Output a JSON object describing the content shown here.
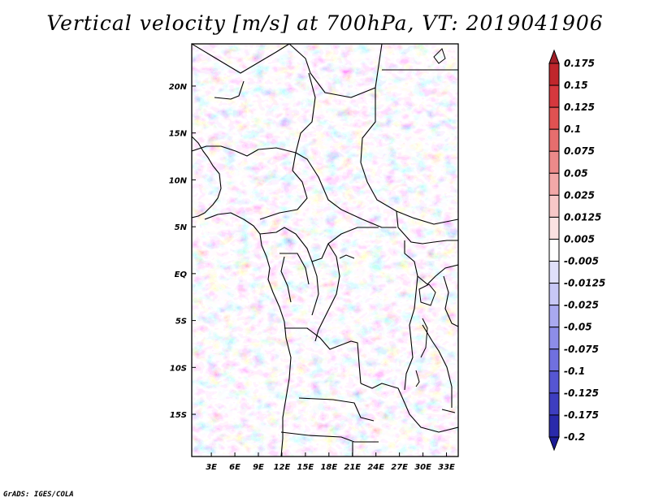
{
  "title": "Vertical velocity [m/s] at 700hPa, VT: 2019041906",
  "footer": "GrADS: IGES/COLA",
  "map": {
    "lat_range": [
      -19.5,
      24.5
    ],
    "lon_range": [
      0.5,
      34.5
    ],
    "lat_ticks": [
      {
        "value": 20,
        "label": "20N"
      },
      {
        "value": 15,
        "label": "15N"
      },
      {
        "value": 10,
        "label": "10N"
      },
      {
        "value": 5,
        "label": "5N"
      },
      {
        "value": 0,
        "label": "EQ"
      },
      {
        "value": -5,
        "label": "5S"
      },
      {
        "value": -10,
        "label": "10S"
      },
      {
        "value": -15,
        "label": "15S"
      }
    ],
    "lon_ticks": [
      {
        "value": 3,
        "label": "3E"
      },
      {
        "value": 6,
        "label": "6E"
      },
      {
        "value": 9,
        "label": "9E"
      },
      {
        "value": 12,
        "label": "12E"
      },
      {
        "value": 15,
        "label": "15E"
      },
      {
        "value": 18,
        "label": "18E"
      },
      {
        "value": 21,
        "label": "21E"
      },
      {
        "value": 24,
        "label": "24E"
      },
      {
        "value": 27,
        "label": "27E"
      },
      {
        "value": 30,
        "label": "30E"
      },
      {
        "value": 33,
        "label": "33E"
      }
    ]
  },
  "colorbar": {
    "labels": [
      "0.175",
      "0.15",
      "0.125",
      "0.1",
      "0.075",
      "0.05",
      "0.025",
      "0.0125",
      "0.005",
      "-0.005",
      "-0.0125",
      "-0.025",
      "-0.05",
      "-0.075",
      "-0.1",
      "-0.125",
      "-0.175",
      "-0.2"
    ],
    "colors": [
      "#a11f28",
      "#c0262c",
      "#d5383e",
      "#e05252",
      "#e66e6e",
      "#ec8a8a",
      "#f2a8a8",
      "#f7c8c8",
      "#fbe2e2",
      "#ffffff",
      "#e0e0fa",
      "#c8c8f6",
      "#a9a9f0",
      "#8d8de8",
      "#7070df",
      "#5656d2",
      "#3e3ec0",
      "#2a2aab",
      "#1c1c96"
    ]
  }
}
